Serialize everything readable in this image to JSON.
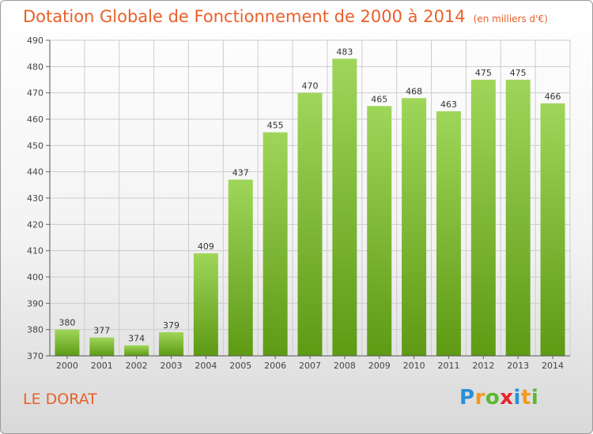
{
  "title": "Dotation Globale de Fonctionnement de 2000 à 2014",
  "unit": "(en milliers d'€)",
  "city": "LE DORAT",
  "logo": {
    "text": "Proxiti",
    "letters": [
      {
        "ch": "P",
        "color": "#2a8fd6"
      },
      {
        "ch": "r",
        "color": "#f39a1a"
      },
      {
        "ch": "o",
        "color": "#5cb82e"
      },
      {
        "ch": "x",
        "color": "#e8242a"
      },
      {
        "ch": "i",
        "color": "#2a8fd6"
      },
      {
        "ch": "t",
        "color": "#f39a1a"
      },
      {
        "ch": "i",
        "color": "#5cb82e"
      }
    ]
  },
  "colors": {
    "title": "#e8602a",
    "bar_light": "#9fd65a",
    "bar_dark": "#5e9a14",
    "grid": "#cccccc"
  },
  "chart_data": {
    "type": "bar",
    "categories": [
      "2000",
      "2001",
      "2002",
      "2003",
      "2004",
      "2005",
      "2006",
      "2007",
      "2008",
      "2009",
      "2010",
      "2011",
      "2012",
      "2013",
      "2014"
    ],
    "values": [
      380,
      377,
      374,
      379,
      409,
      437,
      455,
      470,
      483,
      465,
      468,
      463,
      475,
      475,
      466
    ],
    "ylim": [
      370,
      490
    ],
    "yticks": [
      370,
      380,
      390,
      400,
      410,
      420,
      430,
      440,
      450,
      460,
      470,
      480,
      490
    ],
    "grid": true
  }
}
